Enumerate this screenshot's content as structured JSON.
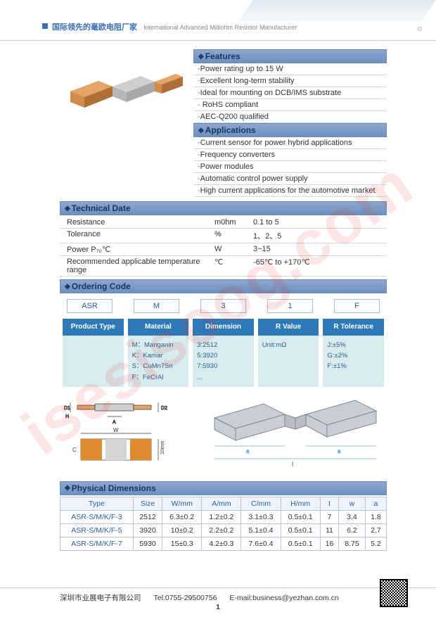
{
  "header": {
    "cn": "国际领先的毫欧电阻厂家",
    "en": "International Advanced   Milliohm Resistor Manufacturer"
  },
  "watermark": "isesisoog.com",
  "features": {
    "title": "Features",
    "items": [
      "·Power rating up to 15 W",
      "·Excellent long-term stability",
      "·Ideal for mounting on DCB/IMS substrate",
      "· RoHS compliant",
      "·AEC-Q200 qualified"
    ]
  },
  "applications": {
    "title": "Applications",
    "items": [
      "·Current sensor for power hybrid applications",
      "·Frequency converters",
      "·Power modules",
      "·Automatic control power supply",
      "·High current applications for the automotive market"
    ]
  },
  "tech": {
    "title": "Technical Date",
    "rows": [
      {
        "p": "Resistance",
        "u": "m0hm",
        "v": "0.1 to 5"
      },
      {
        "p": "Tolerance",
        "u": "%",
        "v": "1、2、5"
      },
      {
        "p": "Power P₇₀℃",
        "u": "W",
        "v": "3~15"
      },
      {
        "p": "Recommended applicable temperature range",
        "u": "℃",
        "v": "-65℃ to +170℃"
      }
    ]
  },
  "ordering": {
    "title": "Ordering Code",
    "boxes": [
      "ASR",
      "M",
      "3",
      "1",
      "F"
    ],
    "headers": [
      "Product Type",
      "Material",
      "Dimension",
      "R Value",
      "R Tolerance"
    ],
    "cols": [
      "",
      "M：Manganin\nK：Kamar\nS：CuMn7Sn\nF：FeCrAl",
      "3:2512\n5:3920\n7:5930\n...",
      "Unit:mΩ",
      "J:±5%\nG:±2%\nF:±1%"
    ]
  },
  "phys": {
    "title": "Physical Dimensions",
    "headers": [
      "Type",
      "Size",
      "W/mm",
      "A/mm",
      "C/mm",
      "H/mm",
      "I",
      "w",
      "a"
    ],
    "rows": [
      [
        "ASR-S/M/K/F-3",
        "2512",
        "6.3±0.2",
        "1.2±0.2",
        "3.1±0.3",
        "0.5±0.1",
        "7",
        "3.4",
        "1.8"
      ],
      [
        "ASR-S/M/K/F-5",
        "3920",
        "10±0.2",
        "2.2±0.2",
        "5.1±0.4",
        "0.5±0.1",
        "11",
        "6.2",
        "2.7"
      ],
      [
        "ASR-S/M/K/F-7",
        "5930",
        "15±0.3",
        "4.2±0.3",
        "7.6±0.4",
        "0.5±0.1",
        "16",
        "8.75",
        "5.2"
      ]
    ]
  },
  "footer": {
    "company": "深圳市业展电子有限公司",
    "tel": "Tel:0755-29500756",
    "email": "E-mail:business@yezhan.com.cn",
    "page": "1"
  },
  "colors": {
    "bar_grad_top": "#8aa8cf",
    "bar_grad_bot": "#6d91c0",
    "blue": "#2e7ab8",
    "teal_bg": "#d8ecef",
    "copper": "#d18b4b",
    "copper_dark": "#b06f34",
    "grey": "#b6b6b6"
  }
}
